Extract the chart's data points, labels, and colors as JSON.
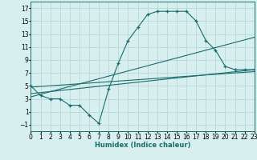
{
  "xlabel": "Humidex (Indice chaleur)",
  "background_color": "#d8eff0",
  "grid_color": "#b8d8d8",
  "line_color": "#1a6b6b",
  "xlim": [
    0,
    23
  ],
  "ylim": [
    -2,
    18
  ],
  "xticks": [
    0,
    1,
    2,
    3,
    4,
    5,
    6,
    7,
    8,
    9,
    10,
    11,
    12,
    13,
    14,
    15,
    16,
    17,
    18,
    19,
    20,
    21,
    22,
    23
  ],
  "yticks": [
    -1,
    1,
    3,
    5,
    7,
    9,
    11,
    13,
    15,
    17
  ],
  "curve1_x": [
    0,
    1,
    2,
    3,
    4,
    5,
    6,
    7,
    8,
    9,
    10,
    11,
    12,
    13,
    14,
    15,
    16,
    17,
    18,
    19,
    20,
    21,
    22,
    23
  ],
  "curve1_y": [
    5,
    3.5,
    3,
    3,
    2,
    2,
    0.5,
    -0.8,
    4.5,
    8.5,
    12,
    14,
    16,
    16.5,
    16.5,
    16.5,
    16.5,
    15,
    12,
    10.5,
    8,
    7.5,
    7.5,
    7.5
  ],
  "line1_x": [
    0,
    23
  ],
  "line1_y": [
    4.8,
    7.2
  ],
  "line2_x": [
    0,
    23
  ],
  "line2_y": [
    3.8,
    7.5
  ],
  "line3_x": [
    0,
    23
  ],
  "line3_y": [
    3.3,
    12.5
  ],
  "xlabel_fontsize": 6,
  "tick_fontsize": 5.5
}
